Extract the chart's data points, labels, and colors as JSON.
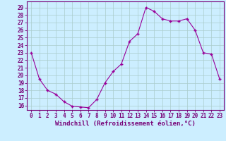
{
  "hours": [
    0,
    1,
    2,
    3,
    4,
    5,
    6,
    7,
    8,
    9,
    10,
    11,
    12,
    13,
    14,
    15,
    16,
    17,
    18,
    19,
    20,
    21,
    22,
    23
  ],
  "values": [
    23.0,
    19.5,
    18.0,
    17.5,
    16.5,
    15.9,
    15.8,
    15.7,
    16.8,
    19.0,
    20.5,
    21.5,
    24.5,
    25.5,
    29.0,
    28.5,
    27.5,
    27.2,
    27.2,
    27.5,
    26.0,
    23.0,
    22.8,
    19.5
  ],
  "line_color": "#990099",
  "marker_color": "#990099",
  "bg_color": "#cceeff",
  "grid_color": "#aacccc",
  "xlabel": "Windchill (Refroidissement éolien,°C)",
  "ylabel_ticks": [
    16,
    17,
    18,
    19,
    20,
    21,
    22,
    23,
    24,
    25,
    26,
    27,
    28,
    29
  ],
  "xlim": [
    -0.5,
    23.5
  ],
  "ylim": [
    15.4,
    29.8
  ],
  "xtick_labels": [
    "0",
    "1",
    "2",
    "3",
    "4",
    "5",
    "6",
    "7",
    "8",
    "9",
    "10",
    "11",
    "12",
    "13",
    "14",
    "15",
    "16",
    "17",
    "18",
    "19",
    "20",
    "21",
    "22",
    "23"
  ],
  "font_color": "#770077",
  "tick_fontsize": 5.5,
  "xlabel_fontsize": 6.5
}
